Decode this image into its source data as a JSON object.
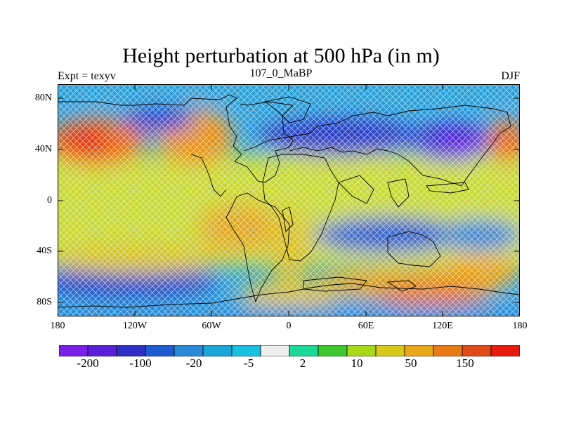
{
  "title": "Height perturbation at 500 hPa (in m)",
  "subtitle_left": "Expt = texyv",
  "subtitle_center": "107_0_MaBP",
  "subtitle_right": "DJF",
  "lat_labels": [
    "80N",
    "40N",
    "0",
    "40S",
    "80S"
  ],
  "lon_labels": [
    "180",
    "120W",
    "60W",
    "0",
    "60E",
    "120E",
    "180"
  ],
  "colorbar": {
    "colors": [
      "#7a1fe8",
      "#5a1fd8",
      "#2f2fc8",
      "#1e5ad0",
      "#2a8ad8",
      "#1aa6d8",
      "#19c0e0",
      "#eeeeee",
      "#1ed89a",
      "#3ec830",
      "#a8d81a",
      "#d8c81a",
      "#e8a81a",
      "#e87a18",
      "#e04a16",
      "#e81a10"
    ],
    "labels": [
      "-200",
      "-100",
      "-20",
      "-5",
      "2",
      "10",
      "50",
      "150"
    ]
  }
}
